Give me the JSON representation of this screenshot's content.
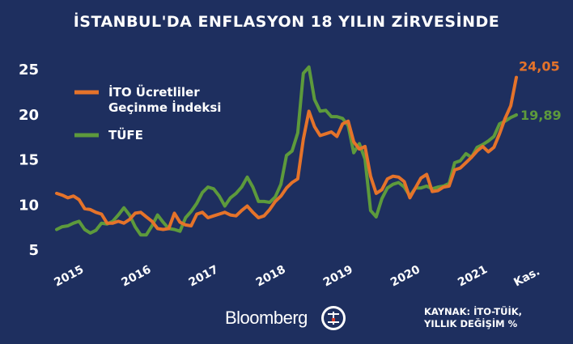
{
  "title": "İSTANBUL'DA ENFLASYON 18 YILIN ZİRVESİNDE",
  "source_line1": "KAYNAK: İTO-TÜİK,",
  "source_line2": "YILLIK DEĞİŞİM %",
  "logo_text": "Bloomberg",
  "logo_ht_icon": "ht-circle-logo-icon",
  "chart_data": {
    "type": "line",
    "title": "İSTANBUL'DA ENFLASYON 18 YILIN ZİRVESİNDE",
    "xlabel": "",
    "ylabel": "",
    "ylim": [
      5,
      25
    ],
    "yticks": [
      5,
      10,
      15,
      20,
      25
    ],
    "x_tick_labels": [
      "2015",
      "2016",
      "2017",
      "2018",
      "2019",
      "2020",
      "2021",
      "Kas."
    ],
    "x_tick_positions": [
      0,
      12,
      24,
      36,
      48,
      60,
      72,
      82
    ],
    "x_domain": [
      0,
      82
    ],
    "legend_position": "top-left",
    "grid": false,
    "series": [
      {
        "name": "İTO Ücretliler Geçinme İndeksi",
        "color": "#e5732a",
        "end_label": "24,05",
        "values": [
          11.2,
          11.0,
          10.7,
          10.9,
          10.5,
          9.5,
          9.4,
          9.1,
          8.9,
          7.9,
          7.9,
          8.1,
          7.9,
          8.3,
          9.0,
          9.1,
          8.6,
          8.1,
          7.3,
          7.2,
          7.3,
          9.0,
          8.0,
          7.7,
          7.6,
          8.9,
          9.1,
          8.5,
          8.7,
          8.9,
          9.1,
          8.8,
          8.7,
          9.3,
          9.8,
          9.1,
          8.5,
          8.7,
          9.4,
          10.3,
          10.9,
          11.8,
          12.4,
          12.8,
          17.2,
          20.3,
          18.6,
          17.6,
          17.8,
          18.0,
          17.5,
          18.9,
          19.2,
          16.9,
          16.1,
          16.4,
          13.1,
          11.2,
          11.6,
          12.8,
          13.1,
          13.0,
          12.5,
          10.7,
          11.8,
          12.9,
          13.3,
          11.4,
          11.5,
          11.9,
          12.0,
          13.8,
          14.0,
          14.6,
          15.2,
          15.9,
          16.4,
          15.8,
          16.3,
          17.8,
          19.5,
          20.9,
          24.05
        ]
      },
      {
        "name": "TÜFE",
        "color": "#5d9a3c",
        "end_label": "19,89",
        "values": [
          7.2,
          7.5,
          7.6,
          7.9,
          8.1,
          7.2,
          6.8,
          7.1,
          7.9,
          7.8,
          8.1,
          8.8,
          9.6,
          8.8,
          7.5,
          6.6,
          6.6,
          7.6,
          8.8,
          8.0,
          7.3,
          7.2,
          7.0,
          8.5,
          9.2,
          10.1,
          11.3,
          11.9,
          11.7,
          10.9,
          9.8,
          10.7,
          11.2,
          11.9,
          13.0,
          11.9,
          10.3,
          10.3,
          10.2,
          10.8,
          12.2,
          15.4,
          15.9,
          17.9,
          24.5,
          25.2,
          21.6,
          20.3,
          20.4,
          19.7,
          19.7,
          19.5,
          18.7,
          15.7,
          16.7,
          15.0,
          9.3,
          8.6,
          10.6,
          11.8,
          12.2,
          12.4,
          11.9,
          10.9,
          11.8,
          11.8,
          12.0,
          11.7,
          11.9,
          12.0,
          12.3,
          14.6,
          14.8,
          15.6,
          15.2,
          16.3,
          16.6,
          17.0,
          17.5,
          18.9,
          19.2,
          19.6,
          19.89
        ]
      }
    ]
  }
}
